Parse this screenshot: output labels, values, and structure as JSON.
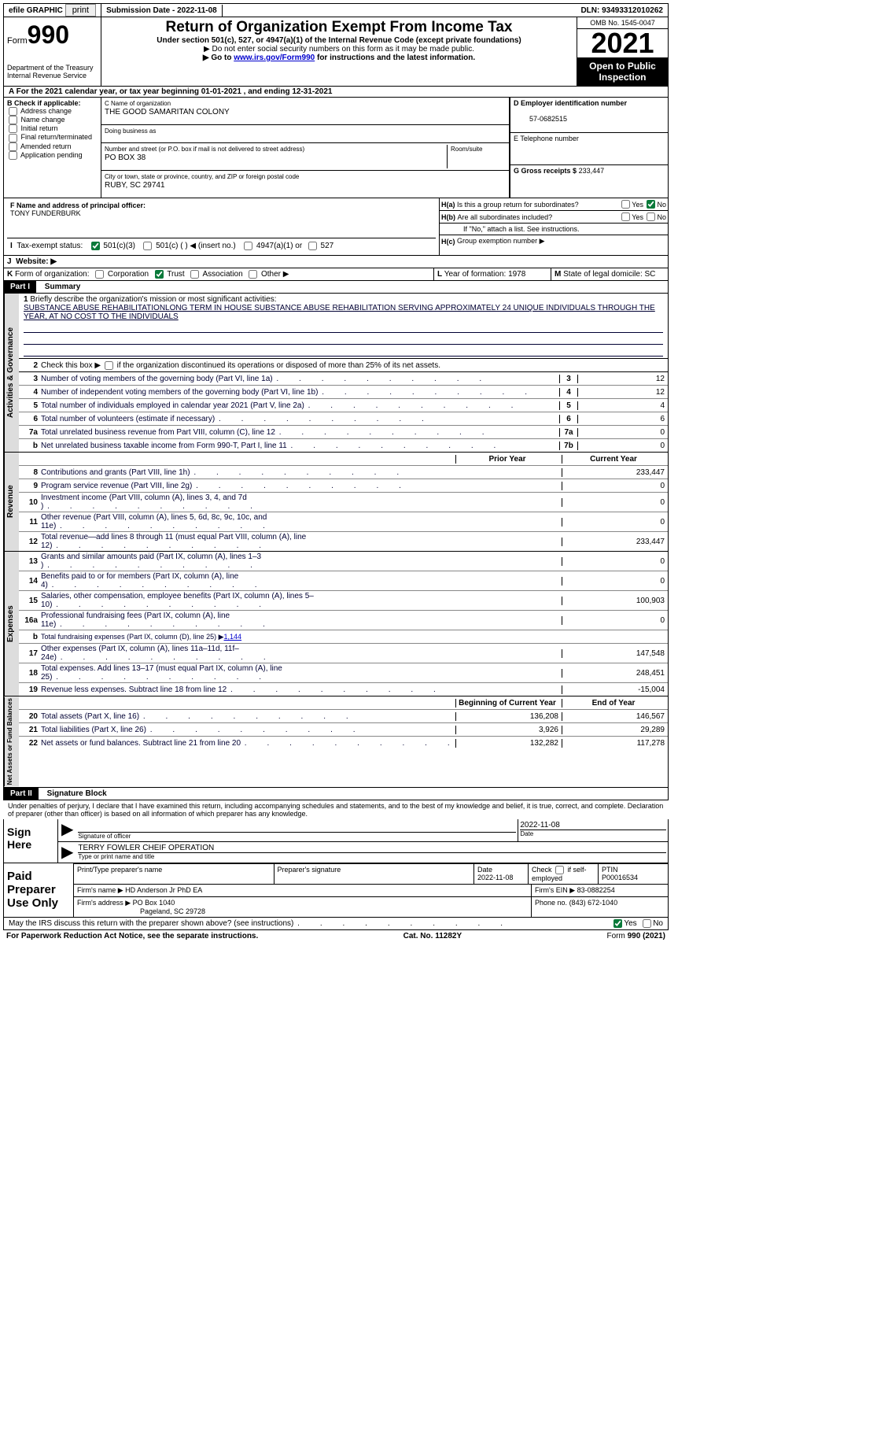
{
  "topbar": {
    "efile": "efile GRAPHIC",
    "print": "print",
    "sub_label": "Submission Date - ",
    "sub_date": "2022-11-08",
    "dln_label": "DLN: ",
    "dln": "93493312010262"
  },
  "header": {
    "form_label": "Form",
    "form_num": "990",
    "dept": "Department of the Treasury\nInternal Revenue Service",
    "title": "Return of Organization Exempt From Income Tax",
    "sub1": "Under section 501(c), 527, or 4947(a)(1) of the Internal Revenue Code (except private foundations)",
    "sub2": "▶ Do not enter social security numbers on this form as it may be made public.",
    "sub3_pre": "▶ Go to ",
    "sub3_link": "www.irs.gov/Form990",
    "sub3_post": " for instructions and the latest information.",
    "omb": "OMB No. 1545-0047",
    "year": "2021",
    "open": "Open to Public Inspection"
  },
  "line_a": {
    "text": "For the 2021 calendar year, or tax year beginning ",
    "begin": "01-01-2021",
    "mid": " , and ending ",
    "end": "12-31-2021"
  },
  "box_b": {
    "label": "B Check if applicable:",
    "items": [
      "Address change",
      "Name change",
      "Initial return",
      "Final return/terminated",
      "Amended return",
      "Application pending"
    ]
  },
  "box_c": {
    "label": "C Name of organization",
    "name": "THE GOOD SAMARITAN COLONY",
    "dba_label": "Doing business as",
    "street_label": "Number and street (or P.O. box if mail is not delivered to street address)",
    "room_label": "Room/suite",
    "street": "PO BOX 38",
    "city_label": "City or town, state or province, country, and ZIP or foreign postal code",
    "city": "RUBY, SC  29741"
  },
  "box_d": {
    "label": "D Employer identification number",
    "value": "57-0682515"
  },
  "box_e": {
    "label": "E Telephone number",
    "value": ""
  },
  "box_g": {
    "label": "G Gross receipts $",
    "value": "233,447"
  },
  "box_f": {
    "label": "F Name and address of principal officer:",
    "value": "TONY FUNDERBURK"
  },
  "box_h": {
    "a_label": "H(a)",
    "a_text": "Is this a group return for subordinates?",
    "a_yes": "Yes",
    "a_no": "No",
    "b_label": "H(b)",
    "b_text": "Are all subordinates included?",
    "b_note": "If \"No,\" attach a list. See instructions.",
    "c_label": "H(c)",
    "c_text": "Group exemption number ▶"
  },
  "box_i": {
    "label": "I",
    "text": "Tax-exempt status:",
    "opts": [
      "501(c)(3)",
      "501(c) (  ) ◀ (insert no.)",
      "4947(a)(1) or",
      "527"
    ]
  },
  "box_j": {
    "label": "J",
    "text": "Website: ▶"
  },
  "box_k": {
    "label": "K",
    "text": "Form of organization:",
    "opts": [
      "Corporation",
      "Trust",
      "Association",
      "Other ▶"
    ]
  },
  "box_l": {
    "label": "L",
    "text": "Year of formation: ",
    "value": "1978"
  },
  "box_m": {
    "label": "M",
    "text": "State of legal domicile: ",
    "value": "SC"
  },
  "part1": {
    "hdr": "Part I",
    "title": "Summary",
    "q1_label": "1",
    "q1_text": "Briefly describe the organization's mission or most significant activities:",
    "q1_val": "SUBSTANCE ABUSE REHABILITATIONLONG TERM IN HOUSE SUBSTANCE ABUSE REHABILITATION SERVING APPROXIMATELY 24 UNIQUE INDIVIDUALS THROUGH THE YEAR, AT NO COST TO THE INDIVIDUALS",
    "q2_label": "2",
    "q2_text": "Check this box ▶   if the organization discontinued its operations or disposed of more than 25% of its net assets."
  },
  "sections": {
    "gov": "Activities & Governance",
    "rev": "Revenue",
    "exp": "Expenses",
    "net": "Net Assets or Fund Balances"
  },
  "rows_gov": [
    {
      "n": "3",
      "t": "Number of voting members of the governing body (Part VI, line 1a)",
      "box": "3",
      "v": "12"
    },
    {
      "n": "4",
      "t": "Number of independent voting members of the governing body (Part VI, line 1b)",
      "box": "4",
      "v": "12"
    },
    {
      "n": "5",
      "t": "Total number of individuals employed in calendar year 2021 (Part V, line 2a)",
      "box": "5",
      "v": "4"
    },
    {
      "n": "6",
      "t": "Total number of volunteers (estimate if necessary)",
      "box": "6",
      "v": "6"
    },
    {
      "n": "7a",
      "t": "Total unrelated business revenue from Part VIII, column (C), line 12",
      "box": "7a",
      "v": "0"
    },
    {
      "n": "b",
      "t": "Net unrelated business taxable income from Form 990-T, Part I, line 11",
      "box": "7b",
      "v": "0"
    }
  ],
  "col_hdrs": {
    "prior": "Prior Year",
    "current": "Current Year"
  },
  "rows_rev": [
    {
      "n": "8",
      "t": "Contributions and grants (Part VIII, line 1h)",
      "p": "",
      "c": "233,447"
    },
    {
      "n": "9",
      "t": "Program service revenue (Part VIII, line 2g)",
      "p": "",
      "c": "0"
    },
    {
      "n": "10",
      "t": "Investment income (Part VIII, column (A), lines 3, 4, and 7d )",
      "p": "",
      "c": "0"
    },
    {
      "n": "11",
      "t": "Other revenue (Part VIII, column (A), lines 5, 6d, 8c, 9c, 10c, and 11e)",
      "p": "",
      "c": "0"
    },
    {
      "n": "12",
      "t": "Total revenue—add lines 8 through 11 (must equal Part VIII, column (A), line 12)",
      "p": "",
      "c": "233,447"
    }
  ],
  "rows_exp": [
    {
      "n": "13",
      "t": "Grants and similar amounts paid (Part IX, column (A), lines 1–3 )",
      "p": "",
      "c": "0"
    },
    {
      "n": "14",
      "t": "Benefits paid to or for members (Part IX, column (A), line 4)",
      "p": "",
      "c": "0"
    },
    {
      "n": "15",
      "t": "Salaries, other compensation, employee benefits (Part IX, column (A), lines 5–10)",
      "p": "",
      "c": "100,903"
    },
    {
      "n": "16a",
      "t": "Professional fundraising fees (Part IX, column (A), line 11e)",
      "p": "",
      "c": "0"
    },
    {
      "n": "b",
      "t": "Total fundraising expenses (Part IX, column (D), line 25) ▶",
      "link": "1,144",
      "shade": true
    },
    {
      "n": "17",
      "t": "Other expenses (Part IX, column (A), lines 11a–11d, 11f–24e)",
      "p": "",
      "c": "147,548"
    },
    {
      "n": "18",
      "t": "Total expenses. Add lines 13–17 (must equal Part IX, column (A), line 25)",
      "p": "",
      "c": "248,451"
    },
    {
      "n": "19",
      "t": "Revenue less expenses. Subtract line 18 from line 12",
      "p": "",
      "c": "-15,004"
    }
  ],
  "col_hdrs2": {
    "begin": "Beginning of Current Year",
    "end": "End of Year"
  },
  "rows_net": [
    {
      "n": "20",
      "t": "Total assets (Part X, line 16)",
      "p": "136,208",
      "c": "146,567"
    },
    {
      "n": "21",
      "t": "Total liabilities (Part X, line 26)",
      "p": "3,926",
      "c": "29,289"
    },
    {
      "n": "22",
      "t": "Net assets or fund balances. Subtract line 21 from line 20",
      "p": "132,282",
      "c": "117,278"
    }
  ],
  "part2": {
    "hdr": "Part II",
    "title": "Signature Block",
    "decl": "Under penalties of perjury, I declare that I have examined this return, including accompanying schedules and statements, and to the best of my knowledge and belief, it is true, correct, and complete. Declaration of preparer (other than officer) is based on all information of which preparer has any knowledge."
  },
  "sign": {
    "here": "Sign Here",
    "sig_officer": "Signature of officer",
    "date": "Date",
    "date_val": "2022-11-08",
    "name_val": "TERRY FOWLER CHEIF OPERATION",
    "name_label": "Type or print name and title"
  },
  "paid": {
    "label": "Paid Preparer Use Only",
    "print_name": "Print/Type preparer's name",
    "sig": "Preparer's signature",
    "date_label": "Date",
    "date_val": "2022-11-08",
    "check_label": "Check         if self-employed",
    "ptin_label": "PTIN",
    "ptin": "P00016534",
    "firm_name_label": "Firm's name    ▶",
    "firm_name": "HD Anderson Jr PhD EA",
    "firm_ein_label": "Firm's EIN ▶",
    "firm_ein": "83-0882254",
    "firm_addr_label": "Firm's address ▶",
    "firm_addr": "PO Box 1040",
    "firm_city": "Pageland, SC  29728",
    "phone_label": "Phone no.",
    "phone": "(843) 672-1040"
  },
  "footer": {
    "discuss": "May the IRS discuss this return with the preparer shown above? (see instructions)",
    "yes": "Yes",
    "no": "No",
    "paperwork": "For Paperwork Reduction Act Notice, see the separate instructions.",
    "cat": "Cat. No. 11282Y",
    "form": "Form 990 (2021)"
  }
}
